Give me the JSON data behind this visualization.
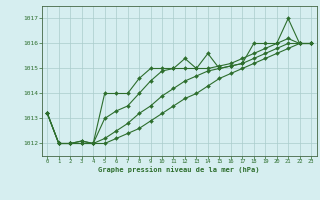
{
  "title": "Graphe pression niveau de la mer (hPa)",
  "bg_color": "#d6eef0",
  "grid_color": "#aacccc",
  "line_color": "#2d6e2d",
  "marker_color": "#2d6e2d",
  "ylim": [
    1011.5,
    1017.5
  ],
  "xlim": [
    -0.5,
    23.5
  ],
  "yticks": [
    1012,
    1013,
    1014,
    1015,
    1016,
    1017
  ],
  "xticks": [
    0,
    1,
    2,
    3,
    4,
    5,
    6,
    7,
    8,
    9,
    10,
    11,
    12,
    13,
    14,
    15,
    16,
    17,
    18,
    19,
    20,
    21,
    22,
    23
  ],
  "series": [
    [
      1013.2,
      1012.0,
      1012.0,
      1012.1,
      1012.0,
      1014.0,
      1014.0,
      1014.0,
      1014.6,
      1015.0,
      1015.0,
      1015.0,
      1015.4,
      1015.0,
      1015.6,
      1015.0,
      1015.1,
      1015.2,
      1016.0,
      1016.0,
      1016.0,
      1017.0,
      1016.0,
      1016.0
    ],
    [
      1013.2,
      1012.0,
      1012.0,
      1012.1,
      1012.0,
      1013.0,
      1013.3,
      1013.5,
      1014.0,
      1014.5,
      1014.9,
      1015.0,
      1015.0,
      1015.0,
      1015.0,
      1015.1,
      1015.2,
      1015.4,
      1015.6,
      1015.8,
      1016.0,
      1016.2,
      1016.0,
      1016.0
    ],
    [
      1013.2,
      1012.0,
      1012.0,
      1012.0,
      1012.0,
      1012.2,
      1012.5,
      1012.8,
      1013.2,
      1013.5,
      1013.9,
      1014.2,
      1014.5,
      1014.7,
      1014.9,
      1015.0,
      1015.1,
      1015.2,
      1015.4,
      1015.6,
      1015.8,
      1016.0,
      1016.0,
      1016.0
    ],
    [
      1013.2,
      1012.0,
      1012.0,
      1012.0,
      1012.0,
      1012.0,
      1012.2,
      1012.4,
      1012.6,
      1012.9,
      1013.2,
      1013.5,
      1013.8,
      1014.0,
      1014.3,
      1014.6,
      1014.8,
      1015.0,
      1015.2,
      1015.4,
      1015.6,
      1015.8,
      1016.0,
      1016.0
    ]
  ]
}
